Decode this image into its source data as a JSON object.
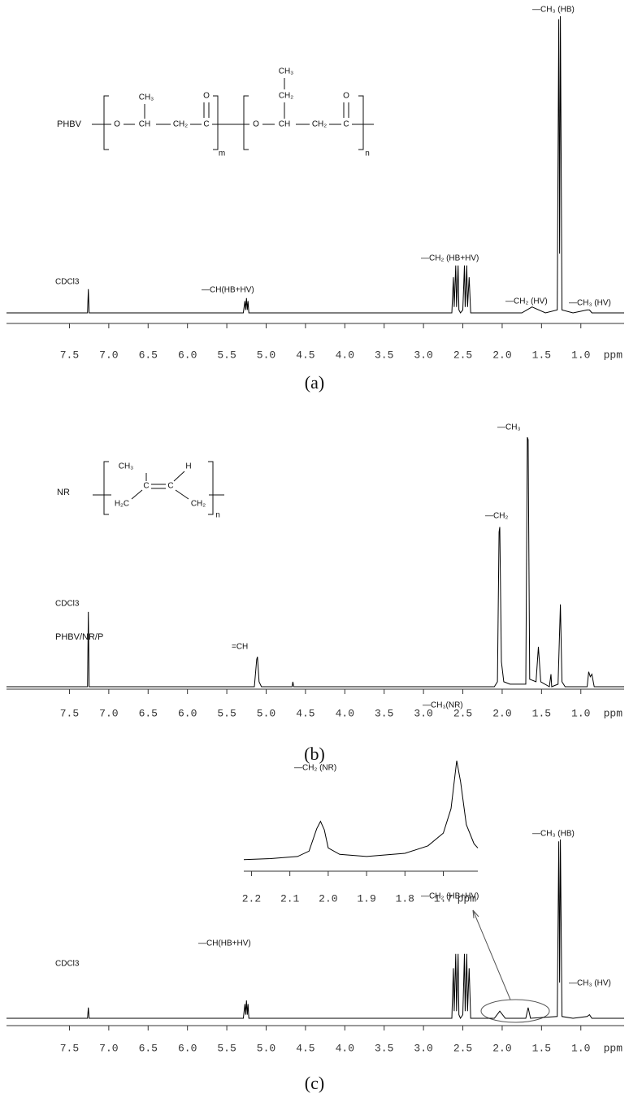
{
  "chart_data": [
    {
      "type": "line",
      "label": "PHBV",
      "caption": "(a)",
      "xlabel": "ppm",
      "color": "#000000",
      "xlim": [
        8.3,
        0.45
      ],
      "ylim": [
        0,
        100
      ],
      "xticks": [
        7.5,
        {
          "value": 7,
          "label": "7.0"
        },
        6.5,
        {
          "value": 6,
          "label": "6.0"
        },
        5.5,
        {
          "value": 5,
          "label": "5.0"
        },
        4.5,
        {
          "value": 4,
          "label": "4.0"
        },
        3.5,
        {
          "value": 3,
          "label": "3.0"
        },
        2.5,
        {
          "value": 2,
          "label": "2.0"
        },
        1.5,
        {
          "value": 1,
          "label": "1.0"
        }
      ],
      "annotations": [
        "CDCl3",
        "—CH(HB+HV)",
        "—CH₂ (HB+HV)",
        "—CH₂ (HV)",
        "—CH₃ (HB)",
        "—CH₃ (HV)"
      ],
      "structure": [
        "O",
        "CH",
        "CH₂",
        "C",
        "O",
        "CH₃",
        "m",
        "O",
        "CH",
        "CH₂",
        "C",
        "O",
        "CH₂",
        "CH₃",
        "n"
      ],
      "x": [
        8.3,
        7.27,
        7.26,
        7.25,
        5.29,
        5.27,
        5.26,
        5.25,
        5.24,
        5.23,
        5.22,
        2.64,
        2.62,
        2.61,
        2.59,
        2.58,
        2.56,
        2.55,
        2.53,
        2.5,
        2.48,
        2.47,
        2.45,
        2.44,
        2.42,
        2.4,
        1.75,
        1.62,
        1.45,
        1.3,
        1.28,
        1.27,
        1.26,
        1.24,
        1.1,
        0.92,
        0.89,
        0.86,
        0.45
      ],
      "values": [
        0,
        0,
        8,
        0,
        0,
        4,
        1,
        5,
        1,
        4,
        0,
        0,
        12,
        2,
        16,
        2,
        16,
        1,
        0,
        1,
        16,
        2,
        16,
        2,
        12,
        0,
        0,
        2,
        0,
        1,
        99,
        20,
        100,
        1,
        0,
        1,
        1,
        0,
        0
      ]
    },
    {
      "type": "line",
      "label": "NR",
      "caption": "(b)",
      "xlabel": "ppm",
      "color": "#000000",
      "xlim": [
        8.3,
        0.45
      ],
      "ylim": [
        0,
        100
      ],
      "xticks": [
        7.5,
        {
          "value": 7,
          "label": "7.0"
        },
        6.5,
        {
          "value": 6,
          "label": "6.0"
        },
        5.5,
        {
          "value": 5,
          "label": "5.0"
        },
        4.5,
        {
          "value": 4,
          "label": "4.0"
        },
        3.5,
        {
          "value": 3,
          "label": "3.0"
        },
        2.5,
        {
          "value": 2,
          "label": "2.0"
        },
        1.5,
        {
          "value": 1,
          "label": "1.0"
        }
      ],
      "annotations": [
        "CDCl3",
        "=CH",
        "—CH₂",
        "—CH₃"
      ],
      "structure": [
        "H₂C",
        "C",
        "C",
        "CH₂",
        "CH₃",
        "H",
        "n"
      ],
      "x": [
        8.3,
        7.27,
        7.26,
        7.25,
        5.15,
        5.12,
        5.11,
        5.09,
        5.06,
        4.67,
        4.66,
        4.65,
        2.1,
        2.06,
        2.04,
        2.03,
        2.01,
        1.98,
        1.9,
        1.7,
        1.68,
        1.67,
        1.65,
        1.57,
        1.54,
        1.51,
        1.4,
        1.38,
        1.37,
        1.29,
        1.26,
        1.24,
        1.2,
        0.92,
        0.9,
        0.88,
        0.86,
        0.83,
        0.45
      ],
      "values": [
        0,
        0,
        30,
        0,
        0,
        11,
        12,
        2,
        0,
        0,
        2,
        0,
        0,
        2,
        62,
        64,
        10,
        2,
        1,
        1,
        100,
        99,
        3,
        2,
        16,
        2,
        0,
        5,
        0,
        1,
        33,
        2,
        0,
        0,
        6,
        4,
        5,
        0,
        0
      ]
    },
    {
      "type": "line",
      "label": "PHBV/NR/P",
      "caption": "(c)",
      "xlabel": "ppm",
      "color": "#000000",
      "xlim": [
        8.3,
        0.45
      ],
      "ylim": [
        0,
        100
      ],
      "xticks": [
        7.5,
        {
          "value": 7,
          "label": "7.0"
        },
        6.5,
        {
          "value": 6,
          "label": "6.0"
        },
        5.5,
        {
          "value": 5,
          "label": "5.0"
        },
        4.5,
        {
          "value": 4,
          "label": "4.0"
        },
        3.5,
        {
          "value": 3,
          "label": "3.0"
        },
        2.5,
        {
          "value": 2,
          "label": "2.0"
        },
        1.5,
        {
          "value": 1,
          "label": "1.0"
        }
      ],
      "annotations": [
        "CDCl3",
        "—CH(HB+HV)",
        "—CH₂ (HB+HV)",
        "—CH₃ (HB)",
        "—CH₃ (HV)"
      ],
      "x": [
        8.3,
        7.27,
        7.26,
        7.25,
        5.29,
        5.27,
        5.26,
        5.25,
        5.24,
        5.23,
        5.22,
        2.64,
        2.62,
        2.61,
        2.59,
        2.58,
        2.56,
        2.55,
        2.53,
        2.5,
        2.48,
        2.47,
        2.45,
        2.44,
        2.42,
        2.4,
        2.1,
        2.03,
        1.96,
        1.7,
        1.67,
        1.64,
        1.3,
        1.28,
        1.27,
        1.26,
        1.24,
        1.1,
        0.92,
        0.89,
        0.86,
        0.45
      ],
      "values": [
        0,
        0,
        6,
        0,
        0,
        8,
        2,
        10,
        2,
        8,
        0,
        0,
        28,
        4,
        36,
        4,
        36,
        2,
        0,
        2,
        36,
        4,
        36,
        4,
        28,
        0,
        0,
        4,
        0,
        0,
        6,
        0,
        1,
        99,
        20,
        100,
        1,
        0,
        1,
        2,
        0,
        0
      ]
    },
    {
      "type": "line",
      "xlabel": "ppm",
      "color": "#000000",
      "xlim": [
        2.22,
        1.61
      ],
      "ylim": [
        0,
        100
      ],
      "xticks": [
        2.2,
        2.1,
        {
          "value": 2,
          "label": "2.0"
        },
        1.9,
        1.8,
        1.7
      ],
      "annotations": [
        "—CH₂ (NR)",
        "—CH₃(NR)"
      ],
      "x": [
        2.22,
        2.15,
        2.08,
        2.05,
        2.03,
        2.02,
        2.01,
        2.0,
        1.97,
        1.9,
        1.8,
        1.74,
        1.7,
        1.68,
        1.665,
        1.655,
        1.64,
        1.62,
        1.61
      ],
      "values": [
        7,
        8,
        10,
        15,
        36,
        43,
        35,
        18,
        12,
        10,
        13,
        20,
        32,
        55,
        100,
        80,
        40,
        22,
        18
      ]
    }
  ]
}
